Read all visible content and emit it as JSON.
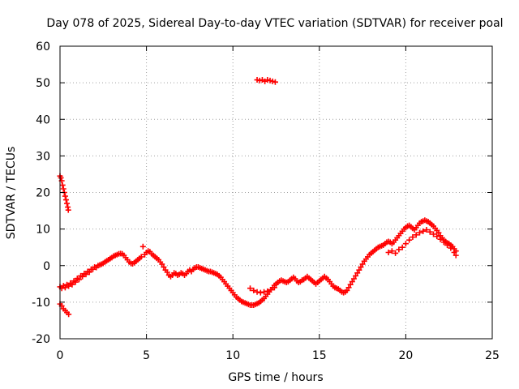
{
  "chart_data": {
    "type": "scatter",
    "title": "Day 078 of 2025, Sidereal Day-to-day VTEC variation (SDTVAR) for receiver poal",
    "xlabel": "GPS time / hours",
    "ylabel": "SDTVAR / TECUs",
    "xlim": [
      0,
      25
    ],
    "ylim": [
      -20,
      60
    ],
    "xticks": [
      0,
      5,
      10,
      15,
      20,
      25
    ],
    "yticks": [
      -20,
      -10,
      0,
      10,
      20,
      30,
      40,
      50,
      60
    ],
    "xtick_labels": [
      "0",
      "5",
      "10",
      "15",
      "20",
      "25"
    ],
    "ytick_labels": [
      "-20",
      "-10",
      "0",
      "10",
      "20",
      "30",
      "40",
      "50",
      "60"
    ],
    "grid": true,
    "marker": "plus",
    "color": "#ff0000",
    "series": [
      {
        "name": "SDTVAR",
        "points": [
          [
            0.0,
            24.5
          ],
          [
            0.05,
            24.0
          ],
          [
            0.1,
            23.2
          ],
          [
            0.15,
            22.0
          ],
          [
            0.2,
            21.0
          ],
          [
            0.25,
            20.0
          ],
          [
            0.3,
            19.0
          ],
          [
            0.35,
            18.0
          ],
          [
            0.4,
            17.0
          ],
          [
            0.45,
            16.0
          ],
          [
            0.48,
            15.2
          ],
          [
            0.0,
            -10.5
          ],
          [
            0.1,
            -11.0
          ],
          [
            0.2,
            -11.8
          ],
          [
            0.3,
            -12.3
          ],
          [
            0.4,
            -12.8
          ],
          [
            0.5,
            -13.3
          ],
          [
            0.0,
            -5.8
          ],
          [
            0.1,
            -6.2
          ],
          [
            0.2,
            -5.5
          ],
          [
            0.3,
            -6.0
          ],
          [
            0.4,
            -5.2
          ],
          [
            0.5,
            -5.6
          ],
          [
            0.6,
            -4.8
          ],
          [
            0.7,
            -5.2
          ],
          [
            0.8,
            -4.2
          ],
          [
            0.9,
            -4.5
          ],
          [
            1.0,
            -3.5
          ],
          [
            1.1,
            -3.8
          ],
          [
            1.2,
            -2.8
          ],
          [
            1.3,
            -3.0
          ],
          [
            1.4,
            -2.2
          ],
          [
            1.5,
            -2.4
          ],
          [
            1.6,
            -1.6
          ],
          [
            1.7,
            -1.8
          ],
          [
            1.8,
            -1.0
          ],
          [
            1.9,
            -1.0
          ],
          [
            2.0,
            -0.4
          ],
          [
            2.1,
            -0.5
          ],
          [
            2.2,
            0.0
          ],
          [
            2.3,
            0.2
          ],
          [
            2.4,
            0.4
          ],
          [
            2.5,
            0.6
          ],
          [
            2.6,
            1.0
          ],
          [
            2.7,
            1.3
          ],
          [
            2.8,
            1.6
          ],
          [
            2.9,
            1.9
          ],
          [
            3.0,
            2.2
          ],
          [
            3.1,
            2.6
          ],
          [
            3.2,
            2.8
          ],
          [
            3.3,
            3.0
          ],
          [
            3.4,
            3.2
          ],
          [
            3.5,
            3.3
          ],
          [
            3.6,
            3.2
          ],
          [
            3.7,
            2.8
          ],
          [
            3.8,
            2.2
          ],
          [
            3.9,
            1.6
          ],
          [
            4.0,
            1.0
          ],
          [
            4.1,
            0.6
          ],
          [
            4.2,
            0.5
          ],
          [
            4.3,
            0.8
          ],
          [
            4.4,
            1.2
          ],
          [
            4.5,
            1.6
          ],
          [
            4.6,
            2.0
          ],
          [
            4.7,
            2.4
          ],
          [
            4.8,
            5.2
          ],
          [
            4.9,
            3.0
          ],
          [
            5.0,
            3.6
          ],
          [
            5.1,
            4.0
          ],
          [
            5.2,
            3.8
          ],
          [
            5.3,
            3.2
          ],
          [
            5.4,
            2.8
          ],
          [
            5.5,
            2.4
          ],
          [
            5.6,
            2.0
          ],
          [
            5.7,
            1.6
          ],
          [
            5.8,
            1.0
          ],
          [
            5.9,
            0.4
          ],
          [
            6.0,
            -0.4
          ],
          [
            6.1,
            -1.2
          ],
          [
            6.2,
            -1.8
          ],
          [
            6.3,
            -2.6
          ],
          [
            6.4,
            -3.0
          ],
          [
            6.5,
            -2.6
          ],
          [
            6.6,
            -2.0
          ],
          [
            6.7,
            -2.2
          ],
          [
            6.8,
            -2.6
          ],
          [
            6.9,
            -2.4
          ],
          [
            7.0,
            -2.0
          ],
          [
            7.1,
            -2.2
          ],
          [
            7.2,
            -2.6
          ],
          [
            7.3,
            -2.2
          ],
          [
            7.4,
            -1.6
          ],
          [
            7.5,
            -1.2
          ],
          [
            7.6,
            -1.6
          ],
          [
            7.7,
            -1.0
          ],
          [
            7.8,
            -0.6
          ],
          [
            7.9,
            -0.4
          ],
          [
            8.0,
            -0.4
          ],
          [
            8.1,
            -0.6
          ],
          [
            8.2,
            -0.8
          ],
          [
            8.3,
            -1.0
          ],
          [
            8.4,
            -1.2
          ],
          [
            8.5,
            -1.4
          ],
          [
            8.6,
            -1.6
          ],
          [
            8.7,
            -1.6
          ],
          [
            8.8,
            -1.8
          ],
          [
            8.9,
            -2.0
          ],
          [
            9.0,
            -2.2
          ],
          [
            9.1,
            -2.4
          ],
          [
            9.2,
            -2.8
          ],
          [
            9.3,
            -3.2
          ],
          [
            9.4,
            -3.8
          ],
          [
            9.5,
            -4.4
          ],
          [
            9.6,
            -5.0
          ],
          [
            9.7,
            -5.6
          ],
          [
            9.8,
            -6.2
          ],
          [
            9.9,
            -6.8
          ],
          [
            10.0,
            -7.4
          ],
          [
            10.1,
            -8.0
          ],
          [
            10.2,
            -8.6
          ],
          [
            10.3,
            -9.0
          ],
          [
            10.4,
            -9.4
          ],
          [
            10.5,
            -9.8
          ],
          [
            10.6,
            -10.0
          ],
          [
            10.7,
            -10.2
          ],
          [
            10.8,
            -10.4
          ],
          [
            10.9,
            -10.6
          ],
          [
            11.0,
            -10.8
          ],
          [
            11.1,
            -10.8
          ],
          [
            11.2,
            -10.8
          ],
          [
            11.3,
            -10.6
          ],
          [
            11.4,
            -10.4
          ],
          [
            11.5,
            -10.2
          ],
          [
            11.6,
            -9.8
          ],
          [
            11.7,
            -9.4
          ],
          [
            11.8,
            -9.0
          ],
          [
            11.9,
            -8.4
          ],
          [
            11.0,
            -6.2
          ],
          [
            11.2,
            -6.8
          ],
          [
            11.4,
            -7.2
          ],
          [
            11.6,
            -7.4
          ],
          [
            11.8,
            -7.2
          ],
          [
            12.0,
            -7.0
          ],
          [
            12.2,
            -6.6
          ],
          [
            12.4,
            -6.0
          ],
          [
            12.0,
            -7.8
          ],
          [
            12.1,
            -7.2
          ],
          [
            12.2,
            -6.6
          ],
          [
            12.3,
            -6.0
          ],
          [
            12.4,
            -5.4
          ],
          [
            12.5,
            -5.0
          ],
          [
            12.6,
            -4.6
          ],
          [
            12.7,
            -4.2
          ],
          [
            12.8,
            -4.0
          ],
          [
            12.9,
            -4.2
          ],
          [
            13.0,
            -4.4
          ],
          [
            13.1,
            -4.6
          ],
          [
            13.2,
            -4.4
          ],
          [
            13.3,
            -4.0
          ],
          [
            13.4,
            -3.6
          ],
          [
            13.5,
            -3.2
          ],
          [
            13.6,
            -3.6
          ],
          [
            13.7,
            -4.2
          ],
          [
            13.8,
            -4.6
          ],
          [
            13.9,
            -4.4
          ],
          [
            14.0,
            -4.0
          ],
          [
            14.1,
            -3.8
          ],
          [
            14.2,
            -3.4
          ],
          [
            14.3,
            -3.0
          ],
          [
            14.4,
            -3.4
          ],
          [
            14.5,
            -3.8
          ],
          [
            14.6,
            -4.2
          ],
          [
            14.7,
            -4.6
          ],
          [
            14.8,
            -5.0
          ],
          [
            14.9,
            -4.6
          ],
          [
            15.0,
            -4.2
          ],
          [
            15.1,
            -3.8
          ],
          [
            15.2,
            -3.4
          ],
          [
            15.3,
            -3.0
          ],
          [
            15.4,
            -3.4
          ],
          [
            15.5,
            -3.8
          ],
          [
            15.6,
            -4.4
          ],
          [
            15.7,
            -5.0
          ],
          [
            15.8,
            -5.6
          ],
          [
            15.9,
            -6.0
          ],
          [
            16.0,
            -6.2
          ],
          [
            16.1,
            -6.4
          ],
          [
            16.2,
            -6.8
          ],
          [
            16.3,
            -7.2
          ],
          [
            16.4,
            -7.4
          ],
          [
            16.5,
            -7.2
          ],
          [
            16.6,
            -6.8
          ],
          [
            16.7,
            -6.0
          ],
          [
            16.8,
            -5.2
          ],
          [
            16.9,
            -4.4
          ],
          [
            17.0,
            -3.6
          ],
          [
            17.1,
            -2.8
          ],
          [
            17.2,
            -2.0
          ],
          [
            17.3,
            -1.2
          ],
          [
            17.4,
            -0.4
          ],
          [
            17.5,
            0.4
          ],
          [
            17.6,
            1.2
          ],
          [
            17.7,
            1.8
          ],
          [
            17.8,
            2.4
          ],
          [
            17.9,
            3.0
          ],
          [
            18.0,
            3.4
          ],
          [
            18.1,
            3.8
          ],
          [
            18.2,
            4.2
          ],
          [
            18.3,
            4.6
          ],
          [
            18.4,
            5.0
          ],
          [
            18.5,
            5.2
          ],
          [
            18.6,
            5.4
          ],
          [
            18.7,
            5.6
          ],
          [
            18.8,
            6.0
          ],
          [
            18.9,
            6.4
          ],
          [
            19.0,
            6.6
          ],
          [
            19.1,
            6.4
          ],
          [
            19.2,
            6.0
          ],
          [
            19.3,
            6.4
          ],
          [
            19.4,
            7.0
          ],
          [
            19.5,
            7.6
          ],
          [
            19.6,
            8.2
          ],
          [
            19.7,
            8.8
          ],
          [
            19.8,
            9.4
          ],
          [
            19.9,
            10.0
          ],
          [
            20.0,
            10.4
          ],
          [
            20.1,
            10.8
          ],
          [
            20.2,
            11.0
          ],
          [
            20.3,
            10.6
          ],
          [
            20.4,
            10.2
          ],
          [
            20.5,
            9.8
          ],
          [
            20.6,
            10.4
          ],
          [
            20.7,
            11.0
          ],
          [
            20.8,
            11.6
          ],
          [
            20.9,
            12.0
          ],
          [
            21.0,
            12.2
          ],
          [
            21.1,
            12.4
          ],
          [
            21.2,
            12.2
          ],
          [
            21.3,
            12.0
          ],
          [
            21.4,
            11.6
          ],
          [
            21.5,
            11.2
          ],
          [
            21.6,
            10.8
          ],
          [
            21.7,
            10.2
          ],
          [
            21.8,
            9.6
          ],
          [
            21.9,
            9.0
          ],
          [
            22.0,
            8.2
          ],
          [
            22.1,
            7.6
          ],
          [
            22.2,
            7.0
          ],
          [
            22.3,
            6.6
          ],
          [
            22.4,
            6.2
          ],
          [
            22.5,
            6.0
          ],
          [
            22.6,
            5.6
          ],
          [
            22.7,
            5.2
          ],
          [
            22.8,
            4.6
          ],
          [
            22.9,
            4.0
          ],
          [
            19.0,
            3.6
          ],
          [
            19.2,
            4.0
          ],
          [
            19.4,
            3.4
          ],
          [
            19.6,
            4.4
          ],
          [
            19.8,
            5.0
          ],
          [
            20.0,
            6.0
          ],
          [
            20.2,
            7.0
          ],
          [
            20.4,
            7.8
          ],
          [
            20.6,
            8.4
          ],
          [
            20.8,
            9.0
          ],
          [
            21.0,
            9.4
          ],
          [
            21.2,
            9.8
          ],
          [
            21.4,
            9.2
          ],
          [
            21.6,
            8.6
          ],
          [
            21.8,
            8.0
          ],
          [
            22.0,
            7.2
          ],
          [
            22.2,
            6.4
          ],
          [
            22.4,
            5.6
          ],
          [
            22.6,
            4.8
          ],
          [
            22.8,
            3.6
          ],
          [
            22.9,
            2.8
          ],
          [
            11.4,
            50.8
          ],
          [
            11.55,
            50.6
          ],
          [
            11.7,
            50.8
          ],
          [
            11.85,
            50.4
          ],
          [
            12.0,
            50.8
          ],
          [
            12.15,
            50.6
          ],
          [
            12.3,
            50.4
          ],
          [
            12.45,
            50.2
          ]
        ]
      }
    ]
  }
}
